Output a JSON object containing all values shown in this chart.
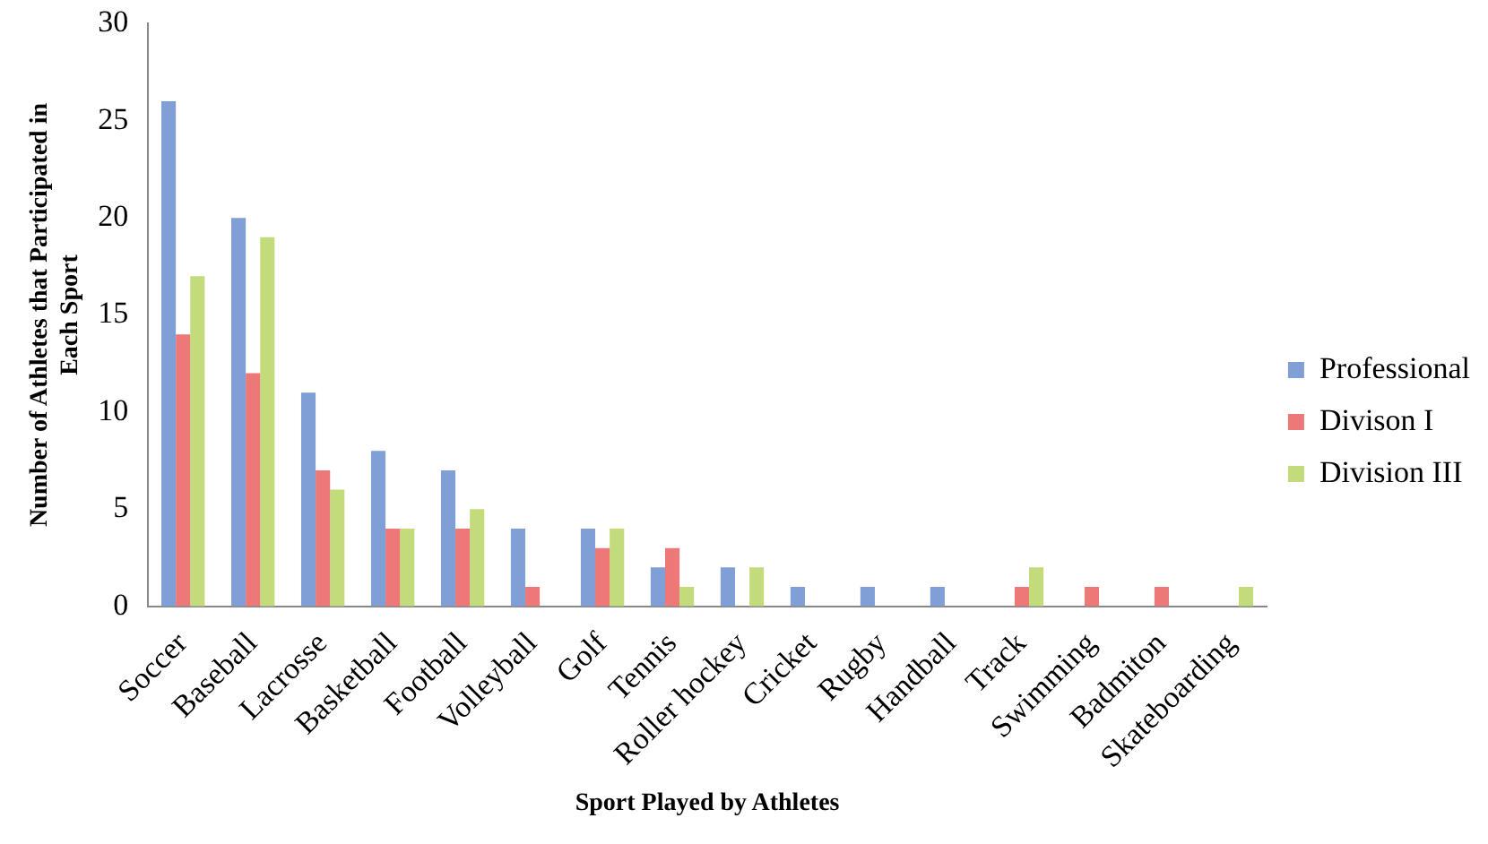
{
  "chart_data": {
    "type": "bar",
    "xlabel": "Sport Played by Athletes",
    "ylabel": "Number of Athletes that Participated in Each Sport",
    "categories": [
      "Soccer",
      "Baseball",
      "Lacrosse",
      "Basketball",
      "Football",
      "Volleyball",
      "Golf",
      "Tennis",
      "Roller hockey",
      "Cricket",
      "Rugby",
      "Handball",
      "Track",
      "Swimming",
      "Badmiton",
      "Skateboarding"
    ],
    "series": [
      {
        "name": "Professional",
        "color": "#7f9fd6",
        "values": [
          26,
          20,
          11,
          8,
          7,
          4,
          4,
          2,
          2,
          1,
          1,
          1,
          0,
          0,
          0,
          0
        ]
      },
      {
        "name": "Divison I",
        "color": "#ec7878",
        "values": [
          14,
          12,
          7,
          4,
          4,
          1,
          3,
          3,
          0,
          0,
          0,
          0,
          1,
          1,
          1,
          0
        ]
      },
      {
        "name": "Division III",
        "color": "#c2dc7c",
        "values": [
          17,
          19,
          6,
          4,
          5,
          0,
          4,
          1,
          2,
          0,
          0,
          0,
          2,
          0,
          0,
          1
        ]
      }
    ],
    "ylim": [
      0,
      30
    ],
    "yticks": [
      0,
      5,
      10,
      15,
      20,
      25,
      30
    ],
    "grid": false,
    "legend": "right"
  }
}
